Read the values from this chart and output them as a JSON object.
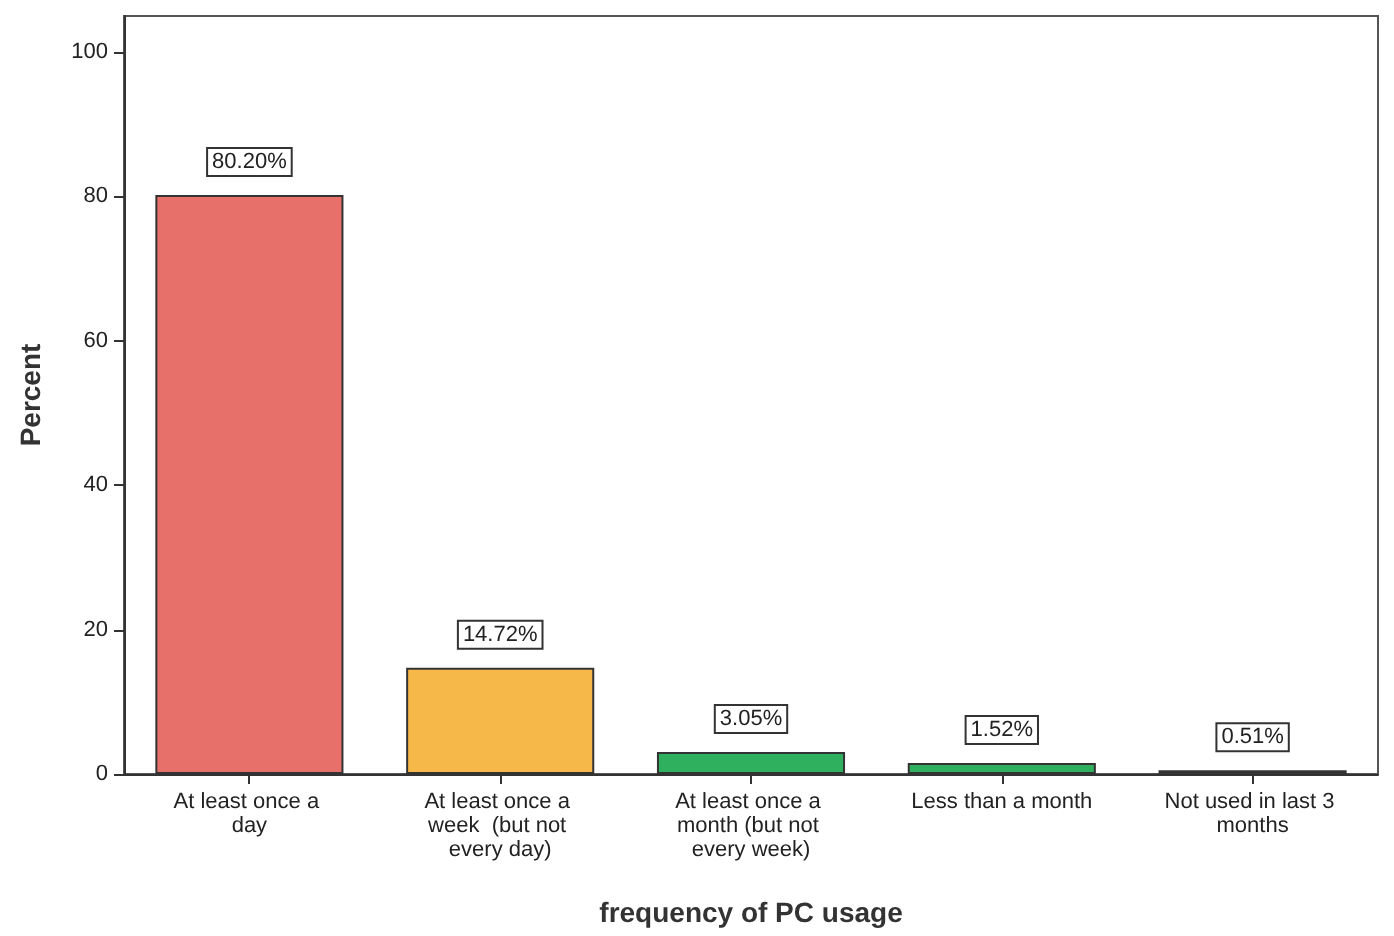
{
  "chart_data": {
    "type": "bar",
    "xlabel": "frequency of PC usage",
    "ylabel": "Percent",
    "categories": [
      "At least once a day",
      "At least once a week  (but not every day)",
      "At least once a month (but not every week)",
      "Less than a month",
      "Not used in last 3 months"
    ],
    "values": [
      80.2,
      14.72,
      3.05,
      1.52,
      0.51
    ],
    "colors": [
      "#e8706a",
      "#f7b84a",
      "#2eb05f",
      "#2eb05f",
      "#2a7a4a"
    ],
    "value_labels": [
      "80.20%",
      "14.72%",
      "3.05%",
      "1.52%",
      "0.51%"
    ],
    "ylim": [
      0,
      105
    ],
    "yticks": [
      0,
      20,
      40,
      60,
      80,
      100
    ],
    "grid": false
  }
}
